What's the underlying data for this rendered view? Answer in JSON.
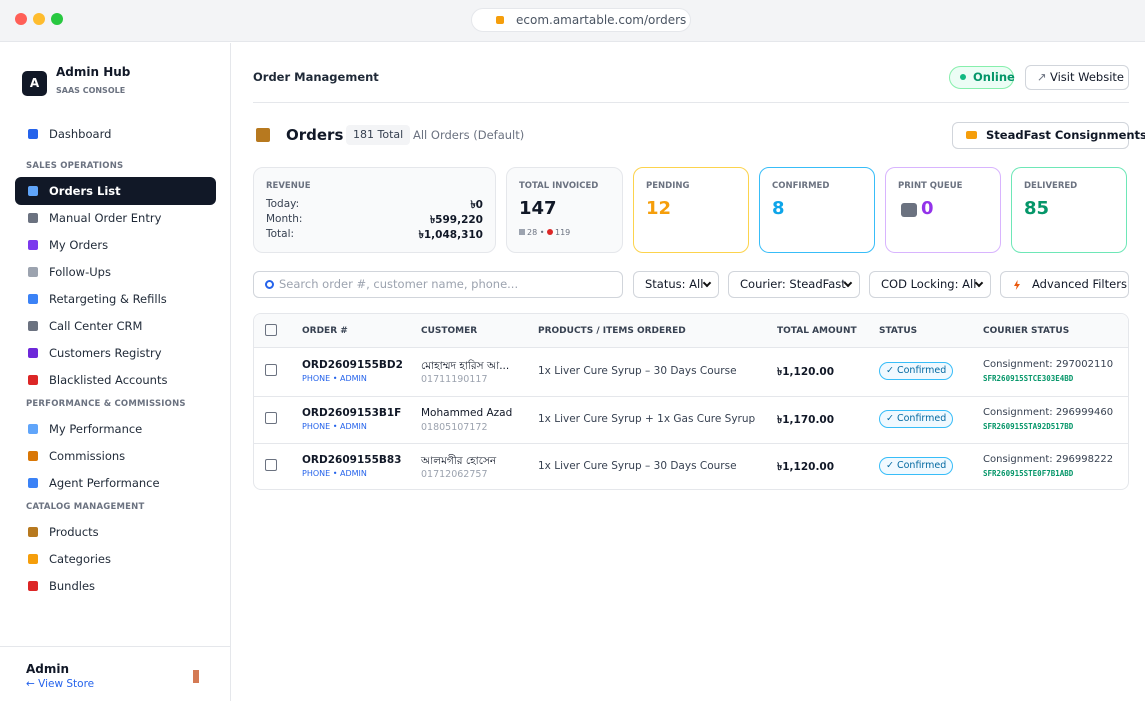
{
  "browser": {
    "url": "ecom.amartable.com/orders"
  },
  "sidebar": {
    "brand": {
      "initial": "A",
      "name": "Admin Hub",
      "subtitle": "SAAS CONSOLE"
    },
    "dashboard": "Dashboard",
    "sections": [
      {
        "title": "SALES OPERATIONS",
        "items": [
          "Orders List",
          "Manual Order Entry",
          "My Orders",
          "Follow-Ups",
          "Retargeting & Refills",
          "Call Center CRM",
          "Customers Registry",
          "Blacklisted Accounts"
        ]
      },
      {
        "title": "PERFORMANCE & COMMISSIONS",
        "items": [
          "My Performance",
          "Commissions",
          "Agent Performance"
        ]
      },
      {
        "title": "CATALOG MANAGEMENT",
        "items": [
          "Products",
          "Categories",
          "Bundles"
        ]
      }
    ],
    "footer": {
      "user": "Admin",
      "link": "← View Store"
    }
  },
  "topbar": {
    "title": "Order Management",
    "status": "Online",
    "visit": "Visit Website"
  },
  "orders_header": {
    "title": "Orders",
    "count": "181 Total",
    "filter": "All Orders (Default)",
    "button": "SteadFast Consignments"
  },
  "stats": {
    "revenue": {
      "label": "REVENUE",
      "rows": [
        [
          "Today:",
          "৳0"
        ],
        [
          "Month:",
          "৳599,220"
        ],
        [
          "Total:",
          "৳1,048,310"
        ]
      ]
    },
    "invoiced": {
      "label": "TOTAL INVOICED",
      "value": 147,
      "print_count": 28,
      "call_count": 119
    },
    "cards": [
      {
        "label": "PENDING",
        "value": 12
      },
      {
        "label": "CONFIRMED",
        "value": 8
      },
      {
        "label": "PRINT QUEUE",
        "value": 0
      },
      {
        "label": "DELIVERED",
        "value": 85
      }
    ]
  },
  "filters": {
    "search_placeholder": "Search order #, customer name, phone...",
    "selects": [
      "Status: All",
      "Courier: SteadFast",
      "COD Locking: All"
    ],
    "advanced": "Advanced Filters"
  },
  "table": {
    "columns": [
      "ORDER #",
      "CUSTOMER",
      "PRODUCTS / ITEMS ORDERED",
      "TOTAL AMOUNT",
      "STATUS",
      "COURIER STATUS"
    ],
    "rows": [
      {
        "order": "ORD2609155BD2",
        "source": "PHONE • ADMIN",
        "customer": "মোহাম্মদ হারিস আ...",
        "phone": "01711190117",
        "products": "1x Liver Cure Syrup – 30 Days Course",
        "total": "৳1,120.00",
        "status": "✓ Confirmed",
        "consignment": "Consignment: 297002110",
        "tracking": "SFR260915STCE303E4BD"
      },
      {
        "order": "ORD2609153B1F",
        "source": "PHONE • ADMIN",
        "customer": "Mohammed Azad",
        "phone": "01805107172",
        "products": "1x Liver Cure Syrup + 1x Gas Cure Syrup",
        "total": "৳1,170.00",
        "status": "✓ Confirmed",
        "consignment": "Consignment: 296999460",
        "tracking": "SFR260915STA92D517BD"
      },
      {
        "order": "ORD2609155B83",
        "source": "PHONE • ADMIN",
        "customer": "আলমগীর হোসেন",
        "phone": "01712062757",
        "products": "1x Liver Cure Syrup – 30 Days Course",
        "total": "৳1,120.00",
        "status": "✓ Confirmed",
        "consignment": "Consignment: 296998222",
        "tracking": "SFR260915STE0F7B1ABD"
      }
    ]
  }
}
